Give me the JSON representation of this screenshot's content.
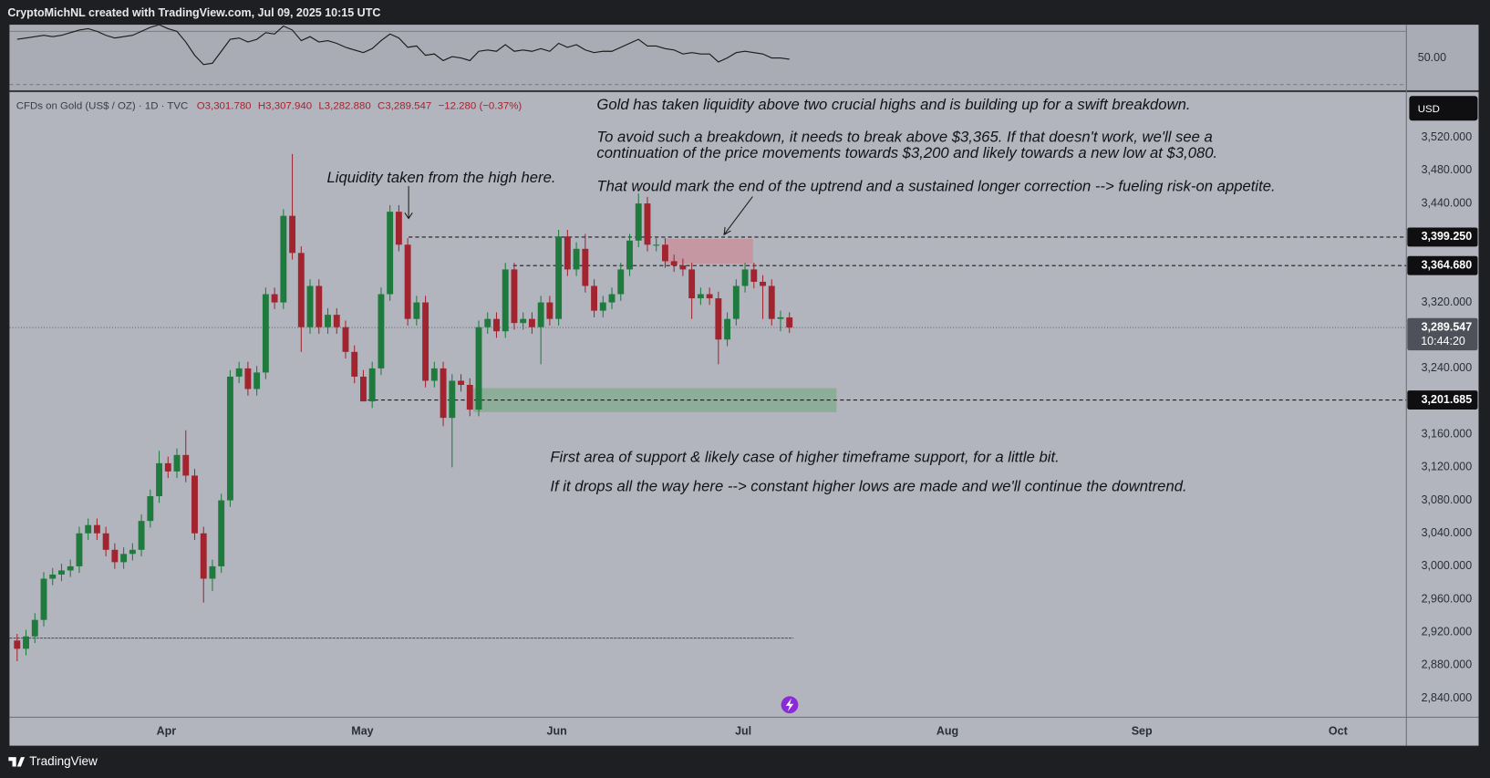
{
  "header": {
    "text": "CryptoMichNL created with TradingView.com, Jul 09, 2025 10:15 UTC"
  },
  "footer": {
    "brand": "TradingView"
  },
  "chart_data": [
    {
      "type": "candlestick",
      "title": "CFDs on Gold (US$ / OZ) · 1D · TVC",
      "legend": [
        "O3,301.780",
        "H3,307.940",
        "L3,282.880",
        "C3,289.547",
        "−12.280 (−0.37%)"
      ],
      "currency": "USD",
      "up_color": "#1f7a3d",
      "down_color": "#a1242f",
      "open": [
        2910,
        2900,
        2915,
        2935,
        2985,
        2990,
        2995,
        3000,
        3040,
        3050,
        3040,
        3020,
        3005,
        3015,
        3020,
        3055,
        3085,
        3125,
        3115,
        3135,
        3110,
        3040,
        2985,
        3000,
        3080,
        3230,
        3240,
        3215,
        3235,
        3330,
        3320,
        3425,
        3380,
        3290,
        3340,
        3290,
        3305,
        3290,
        3260,
        3230,
        3200,
        3240,
        3330,
        3430,
        3390,
        3300,
        3320,
        3225,
        3240,
        3180,
        3225,
        3220,
        3190,
        3290,
        3300,
        3285,
        3360,
        3295,
        3300,
        3290,
        3320,
        3300,
        3400,
        3360,
        3385,
        3340,
        3310,
        3320,
        3330,
        3360,
        3395,
        3440,
        3390,
        3390,
        3370,
        3365,
        3360,
        3325,
        3330,
        3325,
        3275,
        3300,
        3340,
        3360,
        3345,
        3340,
        3300,
        3301.78
      ],
      "high": [
        2918,
        2923,
        2943,
        2993,
        2998,
        3003,
        3008,
        3048,
        3058,
        3058,
        3048,
        3028,
        3023,
        3028,
        3063,
        3093,
        3140,
        3133,
        3143,
        3165,
        3118,
        3048,
        3008,
        3088,
        3238,
        3248,
        3248,
        3243,
        3338,
        3338,
        3433,
        3500,
        3388,
        3348,
        3348,
        3313,
        3313,
        3298,
        3268,
        3238,
        3248,
        3338,
        3438,
        3438,
        3398,
        3328,
        3328,
        3248,
        3248,
        3233,
        3233,
        3228,
        3298,
        3308,
        3308,
        3368,
        3368,
        3308,
        3308,
        3328,
        3328,
        3408,
        3408,
        3393,
        3403,
        3348,
        3328,
        3338,
        3368,
        3403,
        3452,
        3448,
        3398,
        3398,
        3378,
        3373,
        3368,
        3338,
        3338,
        3333,
        3308,
        3348,
        3368,
        3368,
        3353,
        3348,
        3310,
        3307.94
      ],
      "low": [
        2885,
        2892,
        2907,
        2927,
        2977,
        2982,
        2987,
        2992,
        3032,
        3032,
        3012,
        2997,
        2997,
        3007,
        3012,
        3047,
        3077,
        3107,
        3107,
        3102,
        3032,
        2956,
        2970,
        2992,
        3072,
        3222,
        3207,
        3207,
        3227,
        3312,
        3312,
        3372,
        3260,
        3282,
        3282,
        3282,
        3282,
        3252,
        3222,
        3200,
        3192,
        3232,
        3322,
        3382,
        3292,
        3292,
        3217,
        3217,
        3170,
        3120,
        3212,
        3182,
        3182,
        3282,
        3277,
        3277,
        3287,
        3287,
        3282,
        3245,
        3292,
        3292,
        3352,
        3352,
        3332,
        3302,
        3302,
        3312,
        3322,
        3352,
        3387,
        3382,
        3382,
        3362,
        3357,
        3352,
        3300,
        3317,
        3317,
        3245,
        3267,
        3292,
        3332,
        3337,
        3300,
        3292,
        3285,
        3282.88
      ],
      "close": [
        2900,
        2915,
        2935,
        2985,
        2990,
        2995,
        3000,
        3040,
        3050,
        3040,
        3020,
        3005,
        3015,
        3020,
        3055,
        3085,
        3125,
        3115,
        3135,
        3110,
        3040,
        2985,
        3000,
        3080,
        3230,
        3240,
        3215,
        3235,
        3330,
        3320,
        3425,
        3380,
        3290,
        3340,
        3290,
        3305,
        3290,
        3260,
        3230,
        3200,
        3240,
        3330,
        3430,
        3390,
        3300,
        3320,
        3225,
        3240,
        3180,
        3225,
        3220,
        3190,
        3290,
        3300,
        3285,
        3360,
        3295,
        3300,
        3290,
        3320,
        3300,
        3400,
        3360,
        3385,
        3340,
        3310,
        3320,
        3330,
        3360,
        3395,
        3440,
        3390,
        3390,
        3370,
        3365,
        3360,
        3325,
        3330,
        3325,
        3275,
        3300,
        3340,
        3360,
        3345,
        3340,
        3300,
        3302,
        3289.547
      ],
      "last_label": "3,289.547",
      "countdown": "10:44:20",
      "xlim": [
        -0.86,
        156.5
      ],
      "xticks": [
        {
          "value": 16.8,
          "label": "Apr"
        },
        {
          "value": 38.9,
          "label": "May"
        },
        {
          "value": 60.8,
          "label": "Jun"
        },
        {
          "value": 81.8,
          "label": "Jul"
        },
        {
          "value": 104.8,
          "label": "Aug"
        },
        {
          "value": 126.7,
          "label": "Sep"
        },
        {
          "value": 148.8,
          "label": "Oct"
        }
      ],
      "ylim": [
        2817,
        3575
      ],
      "yticks": [
        {
          "value": 2840,
          "label": "2,840.000"
        },
        {
          "value": 2880,
          "label": "2,880.000"
        },
        {
          "value": 2920,
          "label": "2,920.000"
        },
        {
          "value": 2960,
          "label": "2,960.000"
        },
        {
          "value": 3000,
          "label": "3,000.000"
        },
        {
          "value": 3040,
          "label": "3,040.000"
        },
        {
          "value": 3080,
          "label": "3,080.000"
        },
        {
          "value": 3120,
          "label": "3,120.000"
        },
        {
          "value": 3160,
          "label": "3,160.000"
        },
        {
          "value": 3200,
          "label": "3,200.000"
        },
        {
          "value": 3240,
          "label": "3,240.000"
        },
        {
          "value": 3280,
          "label": "3,280.000"
        },
        {
          "value": 3320,
          "label": "3,320.000"
        },
        {
          "value": 3360,
          "label": "3,360.000"
        },
        {
          "value": 3400,
          "label": "3,400.000"
        },
        {
          "value": 3440,
          "label": "3,440.000"
        },
        {
          "value": 3480,
          "label": "3,480.000"
        },
        {
          "value": 3520,
          "label": "3,520.000"
        }
      ],
      "levels": [
        {
          "value": 3399.25,
          "label": "3,399.250"
        },
        {
          "value": 3364.68,
          "label": "3,364.680"
        },
        {
          "value": 3201.685,
          "label": "3,201.685"
        }
      ],
      "unlabeled_levels": [
        2913
      ],
      "zones": [
        {
          "start": 73.0,
          "end": 82.9,
          "top": 3397,
          "bottom": 3367,
          "color": "#c98d99"
        },
        {
          "start": 51.4,
          "end": 92.3,
          "top": 3216,
          "bottom": 3187,
          "color": "#7fab8b"
        }
      ],
      "annotations": [
        "Gold has taken liquidity above two crucial highs and is building up for a swift breakdown.",
        "To avoid such a breakdown, it needs to break above $3,365. If that doesn't work, we'll see a",
        "continuation of the price movements towards $3,200 and likely towards a new low at $3,080.",
        "That would mark the end of the uptrend and a sustained longer correction --> fueling risk-on appetite.",
        "Liquidity taken from the high here.",
        "First area of support & likely case of higher timeframe support, for a little bit.",
        "If it drops all the way here --> constant higher lows are made and we'll continue the downtrend."
      ]
    },
    {
      "type": "line",
      "color": "#1a1a1a",
      "values": [
        64,
        65,
        66,
        67,
        66,
        67,
        69,
        71,
        72,
        70,
        67,
        65,
        66,
        67,
        70,
        73,
        75,
        72,
        70,
        62,
        52,
        45,
        46,
        55,
        64,
        65,
        62,
        64,
        69,
        68,
        74,
        71,
        63,
        66,
        62,
        63,
        61,
        58,
        56,
        54,
        57,
        63,
        68,
        65,
        58,
        59,
        52,
        53,
        48,
        51,
        50,
        48,
        55,
        56,
        55,
        60,
        55,
        56,
        55,
        57,
        55,
        61,
        58,
        60,
        56,
        54,
        55,
        55,
        58,
        61,
        64,
        59,
        59,
        57,
        56,
        53,
        54,
        53,
        53,
        47,
        50,
        54,
        55,
        54,
        53,
        50,
        50,
        49
      ],
      "ylim": [
        25.7,
        75
      ],
      "yticks": [
        {
          "value": 50,
          "label": "50.00"
        }
      ],
      "bands": [
        70,
        30
      ]
    }
  ]
}
